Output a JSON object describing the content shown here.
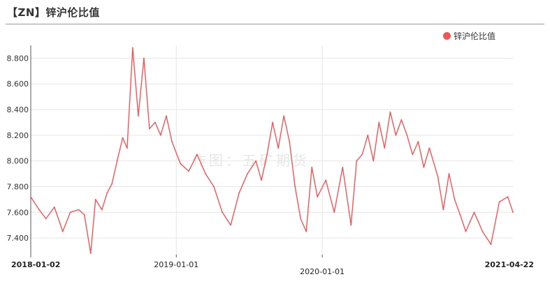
{
  "title": "【ZN】锌沪伦比值",
  "watermark": "作图：五矿期货",
  "colors": {
    "line": "#f05658",
    "grid": "#e6e6e6",
    "axis": "#555555"
  },
  "chart_data": {
    "type": "line",
    "title": "【ZN】锌沪伦比值",
    "legend_position": "top-right",
    "grid": true,
    "ylim": [
      7.27,
      8.9
    ],
    "yticks": [
      "7.400",
      "7.600",
      "7.800",
      "8.000",
      "8.200",
      "8.400",
      "8.600",
      "8.800"
    ],
    "xticks": [
      {
        "label": "2018-01-02",
        "bold": true,
        "row": 1
      },
      {
        "label": "2019-01-01",
        "bold": false,
        "row": 1
      },
      {
        "label": "2020-01-01",
        "bold": false,
        "row": 2
      },
      {
        "label": "2021-04-22",
        "bold": true,
        "row": 1
      }
    ],
    "x_start": "2018-01-02",
    "x_end": "2021-04-22",
    "series": [
      {
        "name": "锌沪伦比值",
        "x": [
          "2018-01-02",
          "2018-01-23",
          "2018-02-09",
          "2018-03-02",
          "2018-03-23",
          "2018-04-11",
          "2018-05-02",
          "2018-05-16",
          "2018-06-01",
          "2018-06-13",
          "2018-06-29",
          "2018-07-12",
          "2018-07-24",
          "2018-08-06",
          "2018-08-20",
          "2018-08-31",
          "2018-09-14",
          "2018-09-28",
          "2018-10-12",
          "2018-10-26",
          "2018-11-09",
          "2018-11-23",
          "2018-12-07",
          "2018-12-21",
          "2019-01-11",
          "2019-02-01",
          "2019-02-22",
          "2019-03-15",
          "2019-04-05",
          "2019-04-26",
          "2019-05-17",
          "2019-06-07",
          "2019-06-28",
          "2019-07-19",
          "2019-08-02",
          "2019-08-16",
          "2019-08-30",
          "2019-09-13",
          "2019-09-27",
          "2019-10-11",
          "2019-10-25",
          "2019-11-08",
          "2019-11-22",
          "2019-12-06",
          "2019-12-20",
          "2020-01-10",
          "2020-01-31",
          "2020-02-21",
          "2020-03-13",
          "2020-03-27",
          "2020-04-10",
          "2020-04-24",
          "2020-05-08",
          "2020-05-22",
          "2020-06-05",
          "2020-06-19",
          "2020-07-03",
          "2020-07-17",
          "2020-07-31",
          "2020-08-14",
          "2020-08-28",
          "2020-09-11",
          "2020-09-25",
          "2020-10-16",
          "2020-10-30",
          "2020-11-13",
          "2020-11-27",
          "2020-12-11",
          "2020-12-25",
          "2021-01-15",
          "2021-02-05",
          "2021-02-26",
          "2021-03-19",
          "2021-04-09",
          "2021-04-22"
        ],
        "y": [
          7.72,
          7.62,
          7.55,
          7.64,
          7.45,
          7.6,
          7.62,
          7.58,
          7.28,
          7.7,
          7.62,
          7.75,
          7.82,
          8.0,
          8.18,
          8.1,
          8.88,
          8.35,
          8.8,
          8.25,
          8.3,
          8.2,
          8.35,
          8.15,
          7.98,
          7.92,
          8.05,
          7.9,
          7.8,
          7.6,
          7.5,
          7.75,
          7.9,
          8.0,
          7.85,
          8.05,
          8.3,
          8.1,
          8.35,
          8.15,
          7.8,
          7.55,
          7.45,
          7.95,
          7.72,
          7.85,
          7.6,
          7.95,
          7.5,
          8.0,
          8.05,
          8.2,
          8.0,
          8.3,
          8.1,
          8.38,
          8.2,
          8.32,
          8.2,
          8.05,
          8.15,
          7.95,
          8.1,
          7.88,
          7.62,
          7.9,
          7.7,
          7.58,
          7.45,
          7.6,
          7.45,
          7.35,
          7.68,
          7.72,
          7.6
        ]
      }
    ]
  }
}
